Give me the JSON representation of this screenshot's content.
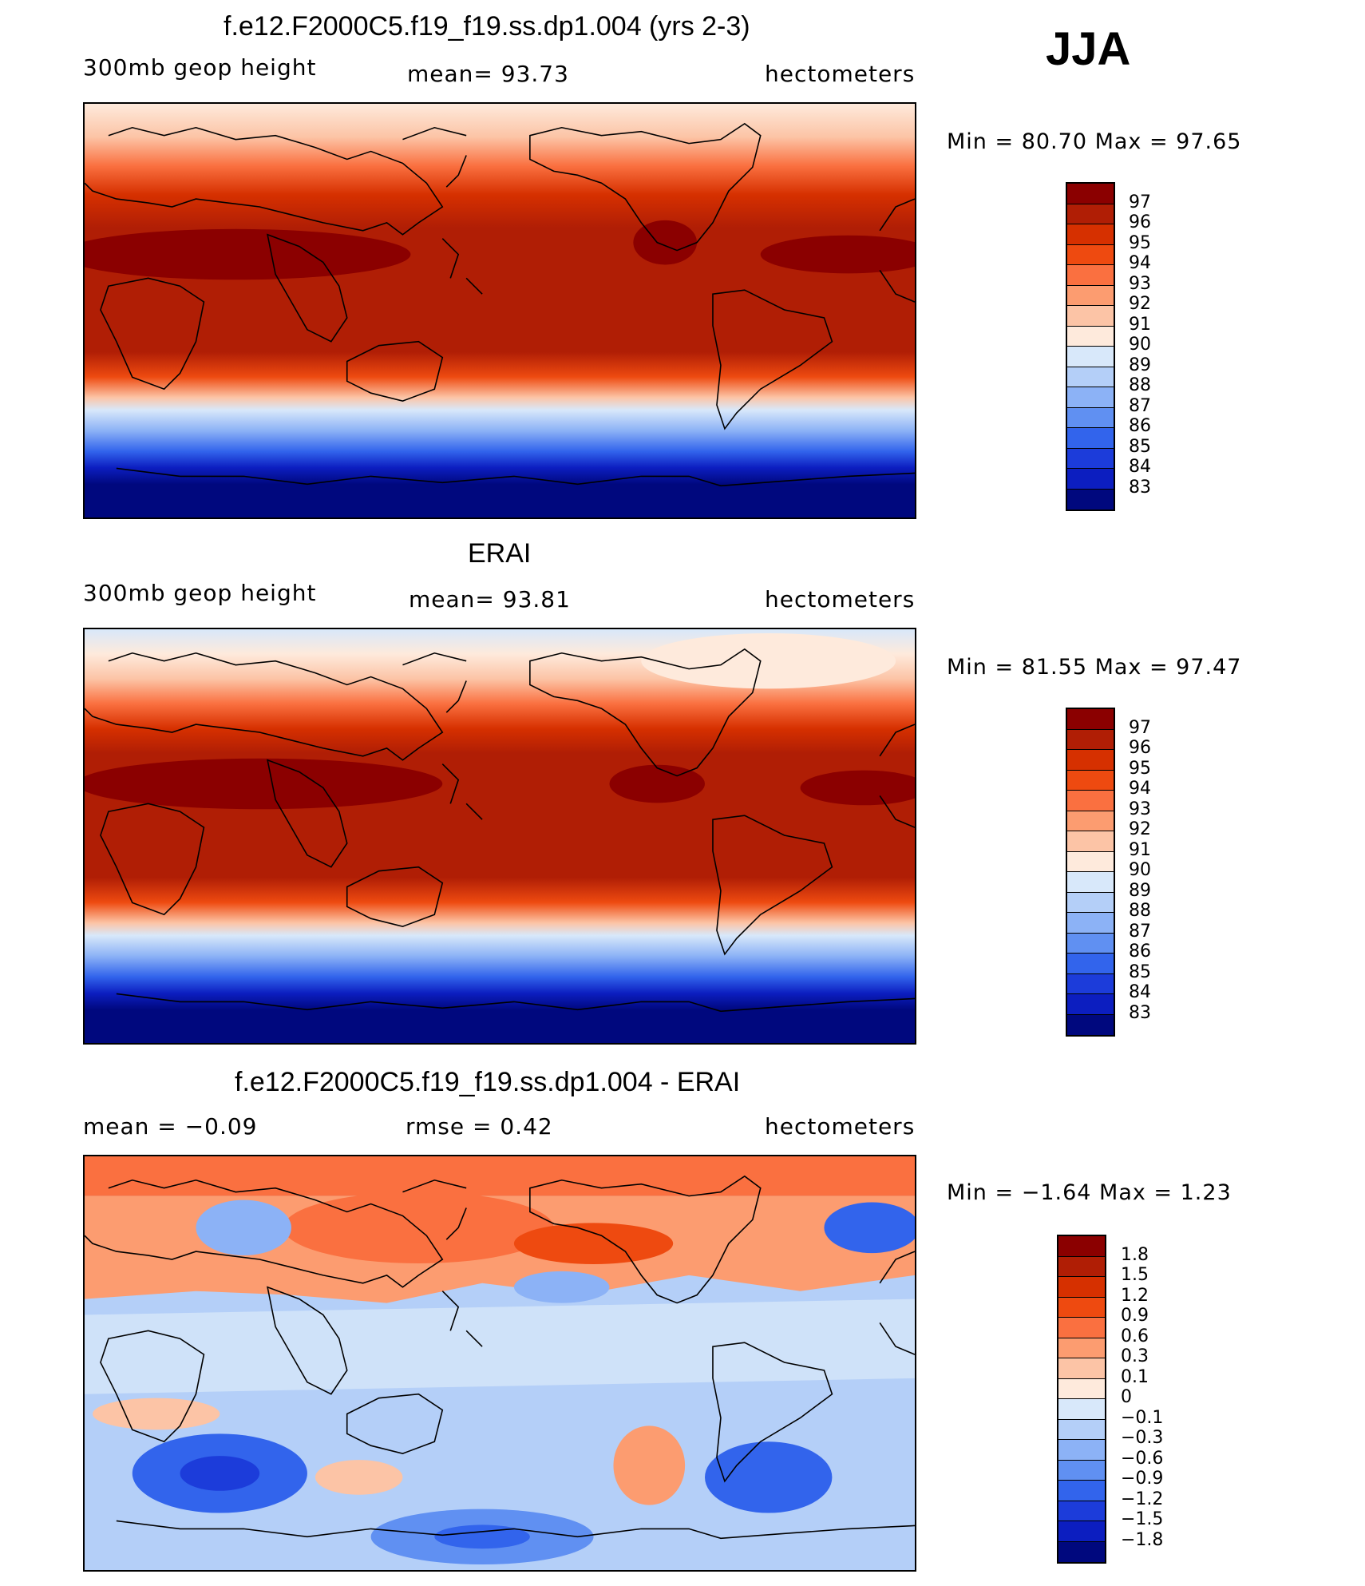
{
  "season": "JJA",
  "panels": [
    {
      "title": "f.e12.F2000C5.f19_f19.ss.dp1.004 (yrs 2-3)",
      "left_label": "300mb  geop  height",
      "center_label": "mean=   93.73",
      "units": "hectometers",
      "minmax": "Min  =    80.70  Max  =    97.65",
      "colorbar": {
        "labels": [
          "97",
          "96",
          "95",
          "94",
          "93",
          "92",
          "91",
          "90",
          "89",
          "88",
          "87",
          "86",
          "85",
          "84",
          "83"
        ],
        "colors": [
          "#8b0000",
          "#b01e05",
          "#d63000",
          "#ee4a10",
          "#fa7040",
          "#fc9c70",
          "#fcc4a6",
          "#feeadc",
          "#d8e8fa",
          "#b4cff8",
          "#8cb2f6",
          "#6090f2",
          "#3264ec",
          "#1c3cda",
          "#0c1ec0",
          "#00087e"
        ]
      }
    },
    {
      "title": "ERAI",
      "left_label": "300mb  geop  height",
      "center_label": "mean=   93.81",
      "units": "hectometers",
      "minmax": "Min  =    81.55  Max  =    97.47",
      "colorbar": {
        "labels": [
          "97",
          "96",
          "95",
          "94",
          "93",
          "92",
          "91",
          "90",
          "89",
          "88",
          "87",
          "86",
          "85",
          "84",
          "83"
        ],
        "colors": [
          "#8b0000",
          "#b01e05",
          "#d63000",
          "#ee4a10",
          "#fa7040",
          "#fc9c70",
          "#fcc4a6",
          "#feeadc",
          "#d8e8fa",
          "#b4cff8",
          "#8cb2f6",
          "#6090f2",
          "#3264ec",
          "#1c3cda",
          "#0c1ec0",
          "#00087e"
        ]
      }
    },
    {
      "title": "f.e12.F2000C5.f19_f19.ss.dp1.004 - ERAI",
      "left_label": "mean  =    −0.09",
      "center_label": "rmse  =     0.42",
      "units": "hectometers",
      "minmax": "Min  =   −1.64  Max  =     1.23",
      "colorbar": {
        "labels": [
          "1.8",
          "1.5",
          "1.2",
          "0.9",
          "0.6",
          "0.3",
          "0.1",
          "0",
          "−0.1",
          "−0.3",
          "−0.6",
          "−0.9",
          "−1.2",
          "−1.5",
          "−1.8"
        ],
        "colors": [
          "#8b0000",
          "#b01e05",
          "#d63000",
          "#ee4a10",
          "#fa7040",
          "#fc9c70",
          "#fcc4a6",
          "#feeadc",
          "#d8e8fa",
          "#b4cff8",
          "#8cb2f6",
          "#6090f2",
          "#3264ec",
          "#1c3cda",
          "#0c1ec0",
          "#00087e"
        ]
      }
    }
  ]
}
